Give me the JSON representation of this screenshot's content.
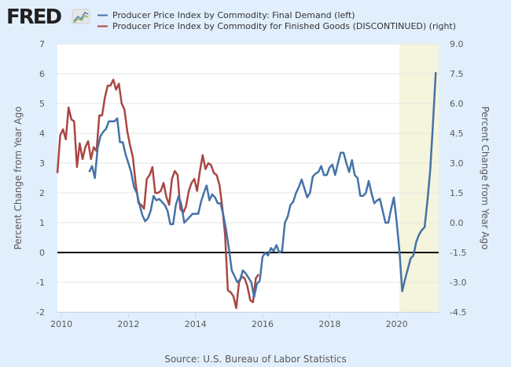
{
  "brand": {
    "logo_text": "FRED",
    "logo_icon": "fred-chart-icon"
  },
  "legend": [
    {
      "label": "Producer Price Index by Commodity: Final Demand (left)",
      "color": "#4572a7"
    },
    {
      "label": "Producer Price Index by Commodity for Finished Goods (DISCONTINUED) (right)",
      "color": "#aa4643"
    }
  ],
  "source": "Source: U.S. Bureau of Labor Statistics",
  "chart_data": {
    "type": "line",
    "title": "",
    "xlabel": "",
    "ylabel_left": "Percent Change from Year Ago",
    "ylabel_right": "Percent Change from Year Ago",
    "xlim": [
      2009.88,
      2021.25
    ],
    "ylim_left": [
      -2,
      7
    ],
    "ylim_right": [
      -4.5,
      9.0
    ],
    "x_ticks": [
      "2010",
      "2012",
      "2014",
      "2016",
      "2018",
      "2020"
    ],
    "y_ticks_left": [
      "7",
      "6",
      "5",
      "4",
      "3",
      "2",
      "1",
      "0",
      "-1",
      "-2"
    ],
    "y_ticks_right": [
      "9.0",
      "7.5",
      "6.0",
      "4.5",
      "3.0",
      "1.5",
      "0.0",
      "-1.5",
      "-3.0",
      "-4.5"
    ],
    "grid": true,
    "zero_line": true,
    "recession_shading": {
      "start": 2020.08,
      "end": 2021.25,
      "color": "#f5f4dc"
    },
    "series": [
      {
        "name": "Producer Price Index by Commodity: Final Demand (left)",
        "axis": "left",
        "color": "#4572a7",
        "start": 2010.83,
        "step_months": 1,
        "values": [
          2.7,
          2.9,
          2.5,
          3.5,
          3.9,
          4.05,
          4.15,
          4.4,
          4.4,
          4.4,
          4.5,
          3.7,
          3.7,
          3.3,
          3.0,
          2.7,
          2.2,
          2.0,
          1.6,
          1.25,
          1.05,
          1.15,
          1.4,
          1.9,
          1.75,
          1.8,
          1.7,
          1.6,
          1.4,
          0.95,
          0.95,
          1.6,
          1.9,
          1.6,
          1.0,
          1.1,
          1.2,
          1.3,
          1.3,
          1.3,
          1.7,
          2.0,
          2.25,
          1.75,
          1.95,
          1.85,
          1.65,
          1.65,
          1.25,
          0.75,
          0.1,
          -0.6,
          -0.8,
          -1.0,
          -0.9,
          -0.6,
          -0.7,
          -0.85,
          -1.0,
          -1.5,
          -1.05,
          -0.95,
          -0.15,
          0.0,
          -0.1,
          0.15,
          0.05,
          0.25,
          0.0,
          0.05,
          1.0,
          1.2,
          1.6,
          1.7,
          2.0,
          2.2,
          2.45,
          2.15,
          1.85,
          2.0,
          2.55,
          2.65,
          2.7,
          2.9,
          2.6,
          2.6,
          2.85,
          2.95,
          2.6,
          3.0,
          3.35,
          3.35,
          3.0,
          2.7,
          3.1,
          2.6,
          2.5,
          1.9,
          1.9,
          2.0,
          2.4,
          2.0,
          1.65,
          1.75,
          1.8,
          1.4,
          1.0,
          1.0,
          1.45,
          1.85,
          1.05,
          0.05,
          -1.3,
          -0.9,
          -0.55,
          -0.2,
          -0.1,
          0.35,
          0.6,
          0.75,
          0.85,
          1.7,
          2.75,
          4.3,
          6.05
        ]
      },
      {
        "name": "Producer Price Index by Commodity for Finished Goods (DISCONTINUED) (right)",
        "axis": "right",
        "color": "#aa4643",
        "start": 2009.88,
        "step_months": 1,
        "values": [
          2.5,
          4.4,
          4.7,
          4.2,
          5.8,
          5.2,
          5.1,
          2.8,
          4.0,
          3.2,
          3.8,
          4.1,
          3.2,
          3.8,
          3.6,
          5.4,
          5.4,
          6.3,
          6.9,
          6.9,
          7.2,
          6.7,
          7.0,
          6.0,
          5.7,
          4.6,
          3.9,
          3.3,
          2.0,
          1.0,
          0.9,
          0.7,
          2.2,
          2.4,
          2.8,
          1.5,
          1.5,
          1.6,
          2.0,
          1.3,
          0.9,
          2.2,
          2.6,
          2.4,
          0.7,
          0.5,
          0.8,
          1.6,
          2.0,
          2.2,
          1.6,
          2.6,
          3.4,
          2.7,
          3.0,
          2.9,
          2.5,
          2.4,
          1.9,
          0.8,
          -0.6,
          -3.4,
          -3.5,
          -3.7,
          -4.3,
          -3.0,
          -2.7,
          -2.8,
          -3.2,
          -3.9,
          -4.0,
          -2.8,
          -2.6
        ]
      }
    ]
  }
}
